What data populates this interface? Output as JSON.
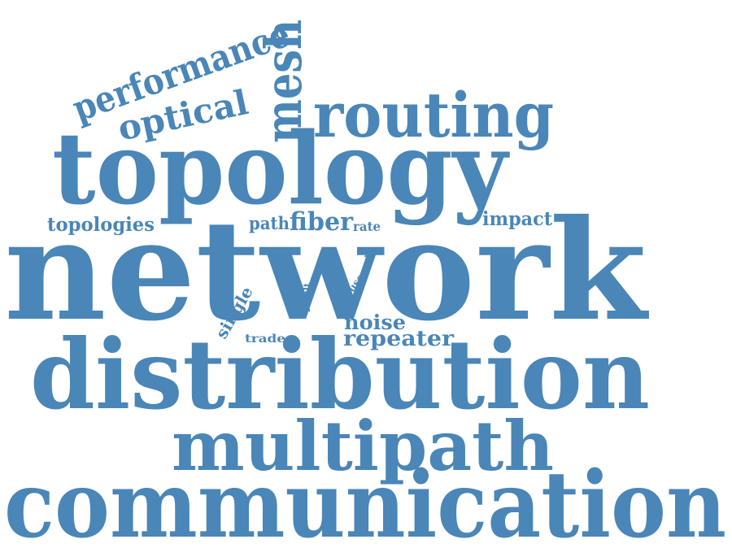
{
  "word_color": "#4a86b7",
  "background": "#ffffff",
  "words": {
    "network": "network",
    "communication": "communication",
    "distribution": "distribution",
    "topology": "topology",
    "multipath": "multipath",
    "routing": "routing",
    "mesh": "mesh",
    "performance": "performance",
    "optical": "optical",
    "topologies": "topologies",
    "path": "path",
    "fiber": "fiber",
    "rate": "rate",
    "impact": "impact",
    "cost": "cost",
    "user": "user",
    "result": "result",
    "single": "single",
    "trade": "trade",
    "noise": "noise",
    "repeater": "repeater"
  }
}
